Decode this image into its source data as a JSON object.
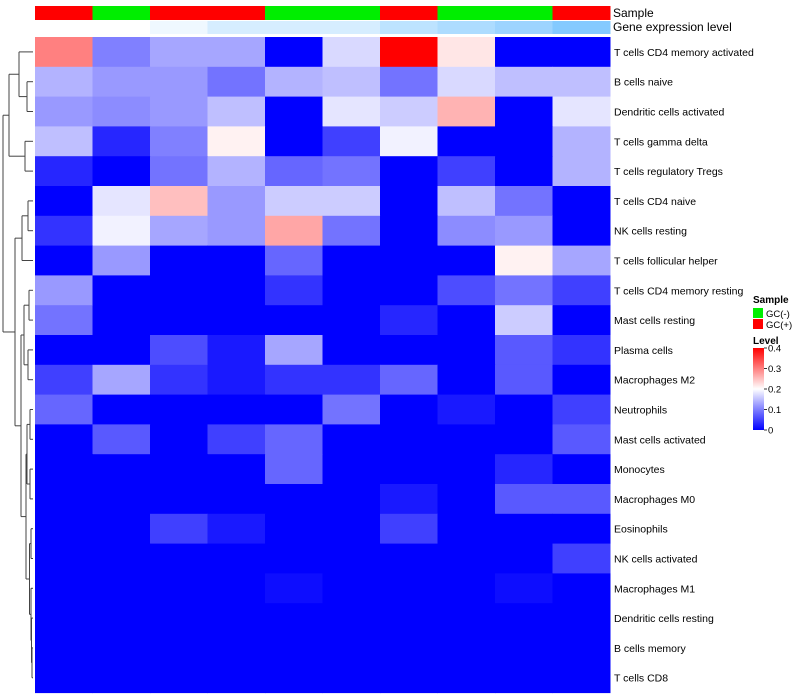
{
  "chart_data": {
    "type": "heatmap",
    "title": "",
    "annotation_labels": {
      "sample": "Sample",
      "expression": "Gene expression level"
    },
    "sample_groups": [
      "GC(+)",
      "GC(-)",
      "GC(+)",
      "GC(+)",
      "GC(-)",
      "GC(-)",
      "GC(+)",
      "GC(-)",
      "GC(-)",
      "GC(+)"
    ],
    "expression_annotation": [
      0.2,
      0.2,
      0.18,
      0.15,
      0.15,
      0.15,
      0.12,
      0.1,
      0.08,
      0.05
    ],
    "rows": [
      "T cells CD4 memory activated",
      "B cells naive",
      "Dendritic cells activated",
      "T cells gamma delta",
      "T cells regulatory  Tregs",
      "T cells CD4 naive",
      "NK cells resting",
      "T cells follicular helper",
      "T cells CD4 memory resting",
      "Mast cells resting",
      "Plasma cells",
      "Macrophages M2",
      "Neutrophils",
      "Mast cells activated",
      "Monocytes",
      "Macrophages M0",
      "Eosinophils",
      "NK cells activated",
      "Macrophages M1",
      "Dendritic cells resting",
      "B cells memory",
      "T cells CD8"
    ],
    "values": [
      [
        0.3,
        0.1,
        0.13,
        0.13,
        0.0,
        0.17,
        0.4,
        0.22,
        0.0,
        0.0
      ],
      [
        0.14,
        0.12,
        0.12,
        0.09,
        0.14,
        0.15,
        0.09,
        0.17,
        0.15,
        0.15
      ],
      [
        0.12,
        0.11,
        0.12,
        0.15,
        0.0,
        0.18,
        0.16,
        0.26,
        0.0,
        0.18
      ],
      [
        0.15,
        0.03,
        0.1,
        0.21,
        0.0,
        0.05,
        0.19,
        0.0,
        0.0,
        0.14
      ],
      [
        0.03,
        0.0,
        0.09,
        0.14,
        0.08,
        0.09,
        0.0,
        0.05,
        0.0,
        0.14
      ],
      [
        0.0,
        0.18,
        0.25,
        0.12,
        0.16,
        0.16,
        0.0,
        0.15,
        0.09,
        0.0
      ],
      [
        0.04,
        0.19,
        0.13,
        0.12,
        0.27,
        0.09,
        0.0,
        0.11,
        0.12,
        0.0
      ],
      [
        0.0,
        0.12,
        0.0,
        0.0,
        0.08,
        0.0,
        0.0,
        0.0,
        0.21,
        0.13
      ],
      [
        0.12,
        0.0,
        0.0,
        0.0,
        0.04,
        0.0,
        0.0,
        0.06,
        0.09,
        0.05
      ],
      [
        0.09,
        0.0,
        0.0,
        0.0,
        0.0,
        0.0,
        0.03,
        0.0,
        0.16,
        0.0
      ],
      [
        0.0,
        0.0,
        0.06,
        0.02,
        0.13,
        0.0,
        0.0,
        0.0,
        0.07,
        0.04
      ],
      [
        0.05,
        0.13,
        0.04,
        0.02,
        0.04,
        0.04,
        0.08,
        0.0,
        0.07,
        0.0
      ],
      [
        0.08,
        0.0,
        0.0,
        0.0,
        0.0,
        0.09,
        0.0,
        0.02,
        0.0,
        0.05
      ],
      [
        0.0,
        0.07,
        0.0,
        0.05,
        0.08,
        0.0,
        0.0,
        0.0,
        0.0,
        0.07
      ],
      [
        0.0,
        0.0,
        0.0,
        0.0,
        0.08,
        0.0,
        0.0,
        0.0,
        0.03,
        0.0
      ],
      [
        0.0,
        0.0,
        0.0,
        0.0,
        0.0,
        0.0,
        0.02,
        0.0,
        0.07,
        0.07
      ],
      [
        0.0,
        0.0,
        0.05,
        0.02,
        0.0,
        0.0,
        0.05,
        0.0,
        0.0,
        0.0
      ],
      [
        0.0,
        0.0,
        0.0,
        0.0,
        0.0,
        0.0,
        0.0,
        0.0,
        0.0,
        0.05
      ],
      [
        0.0,
        0.0,
        0.0,
        0.0,
        0.01,
        0.0,
        0.0,
        0.0,
        0.01,
        0.0
      ],
      [
        0.0,
        0.0,
        0.0,
        0.0,
        0.0,
        0.0,
        0.0,
        0.0,
        0.0,
        0.0
      ],
      [
        0.0,
        0.0,
        0.0,
        0.0,
        0.0,
        0.0,
        0.0,
        0.0,
        0.0,
        0.0
      ],
      [
        0.0,
        0.0,
        0.0,
        0.0,
        0.0,
        0.0,
        0.0,
        0.0,
        0.0,
        0.0
      ]
    ],
    "color_scale": {
      "min": 0,
      "mid": 0.2,
      "max": 0.4,
      "low_color": "#0000ff",
      "mid_color": "#ffffff",
      "high_color": "#ff0000"
    },
    "legend": {
      "placement": "right",
      "sample_title": "Sample",
      "sample_entries": [
        {
          "name": "GC(-)",
          "color": "#00ee00"
        },
        {
          "name": "GC(+)",
          "color": "#ff0000"
        }
      ],
      "level_title": "Level",
      "level_ticks": [
        "0.4",
        "0.3",
        "0.2",
        "0.1",
        "0"
      ],
      "level_tick_values": [
        0.4,
        0.3,
        0.2,
        0.1,
        0
      ]
    },
    "group_colors": {
      "GC(+)": "#ff0000",
      "GC(-)": "#00ee00"
    },
    "expression_colors": {
      "low": "#5bb8ff",
      "high": "#ffffff"
    },
    "row_dendrogram": true
  }
}
